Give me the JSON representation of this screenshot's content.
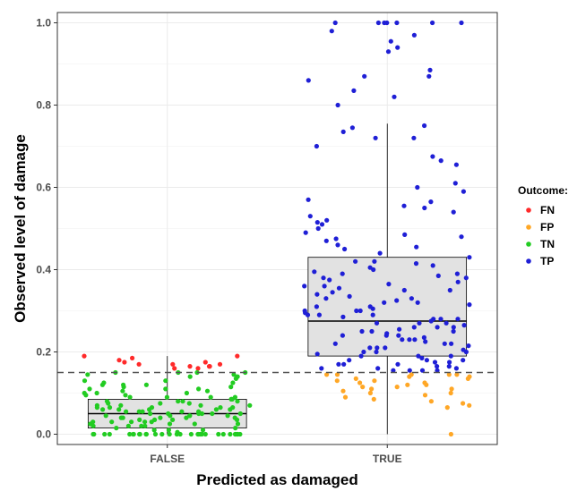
{
  "chart_data": {
    "type": "scatter",
    "subtype": "boxplot-with-jitter",
    "title": "",
    "xlabel": "Predicted as damaged",
    "ylabel": "Observed level of damage",
    "categories": [
      "FALSE",
      "TRUE"
    ],
    "ylim": [
      -0.025,
      1.025
    ],
    "yticks": [
      "0.0",
      "0.2",
      "0.4",
      "0.6",
      "0.8",
      "1.0"
    ],
    "ytick_values": [
      0,
      0.2,
      0.4,
      0.6,
      0.8,
      1.0
    ],
    "grid": true,
    "threshold": 0.15,
    "threshold_style": "dashed",
    "legend": {
      "title": "Outcome:",
      "placement": "right",
      "entries": [
        {
          "label": "FN",
          "color": "#ff2a2a"
        },
        {
          "label": "FP",
          "color": "#ffa726"
        },
        {
          "label": "TN",
          "color": "#22cc22"
        },
        {
          "label": "TP",
          "color": "#1f1fd6"
        }
      ]
    },
    "boxes": [
      {
        "category": "FALSE",
        "whisker_low": 0.0,
        "q1": 0.015,
        "median": 0.05,
        "q3": 0.085,
        "whisker_high": 0.19
      },
      {
        "category": "TRUE",
        "whisker_low": 0.0,
        "q1": 0.19,
        "median": 0.275,
        "q3": 0.43,
        "whisker_high": 0.755
      }
    ],
    "series": [
      {
        "name": "FN",
        "category": "FALSE",
        "values": [
          0.19,
          0.19,
          0.185,
          0.18,
          0.175,
          0.17,
          0.17,
          0.165,
          0.165,
          0.16,
          0.16,
          0.165,
          0.17,
          0.175
        ]
      },
      {
        "name": "TN",
        "category": "FALSE",
        "values": [
          0.0,
          0.0,
          0.0,
          0.0,
          0.0,
          0.0,
          0.0,
          0.0,
          0.0,
          0.0,
          0.0,
          0.0,
          0.0,
          0.0,
          0.0,
          0.0,
          0.0,
          0.0,
          0.0,
          0.0,
          0.0,
          0.0,
          0.0,
          0.0,
          0.0,
          0.0,
          0.0,
          0.0,
          0.0,
          0.0,
          0.005,
          0.01,
          0.01,
          0.015,
          0.015,
          0.02,
          0.02,
          0.02,
          0.025,
          0.025,
          0.025,
          0.03,
          0.03,
          0.03,
          0.03,
          0.035,
          0.035,
          0.035,
          0.04,
          0.04,
          0.04,
          0.04,
          0.045,
          0.045,
          0.045,
          0.045,
          0.05,
          0.05,
          0.05,
          0.05,
          0.05,
          0.055,
          0.055,
          0.055,
          0.055,
          0.06,
          0.06,
          0.06,
          0.06,
          0.065,
          0.065,
          0.065,
          0.065,
          0.07,
          0.07,
          0.07,
          0.075,
          0.075,
          0.075,
          0.08,
          0.08,
          0.08,
          0.085,
          0.085,
          0.085,
          0.09,
          0.09,
          0.09,
          0.095,
          0.095,
          0.1,
          0.1,
          0.1,
          0.105,
          0.105,
          0.11,
          0.11,
          0.115,
          0.115,
          0.12,
          0.12,
          0.125,
          0.125,
          0.13,
          0.13,
          0.135,
          0.14,
          0.14,
          0.145,
          0.145,
          0.15,
          0.15,
          0.15,
          0.15,
          0.02,
          0.04,
          0.06,
          0.08,
          0.03,
          0.05,
          0.07,
          0.01,
          0.09,
          0.11,
          0.12,
          0.035,
          0.045,
          0.055,
          0.065,
          0.025
        ]
      },
      {
        "name": "FP",
        "category": "TRUE",
        "values": [
          0.0,
          0.065,
          0.07,
          0.075,
          0.08,
          0.085,
          0.09,
          0.095,
          0.1,
          0.1,
          0.105,
          0.11,
          0.11,
          0.115,
          0.115,
          0.12,
          0.12,
          0.125,
          0.125,
          0.13,
          0.13,
          0.135,
          0.135,
          0.14,
          0.14,
          0.145,
          0.145,
          0.145,
          0.145,
          0.145
        ]
      },
      {
        "name": "TP",
        "category": "TRUE",
        "values": [
          1.0,
          1.0,
          1.0,
          1.0,
          1.0,
          1.0,
          1.0,
          0.98,
          0.97,
          0.955,
          0.94,
          0.93,
          0.885,
          0.87,
          0.87,
          0.86,
          0.835,
          0.82,
          0.8,
          0.75,
          0.745,
          0.735,
          0.72,
          0.72,
          0.7,
          0.675,
          0.665,
          0.655,
          0.61,
          0.6,
          0.59,
          0.57,
          0.565,
          0.555,
          0.55,
          0.54,
          0.53,
          0.52,
          0.515,
          0.51,
          0.5,
          0.49,
          0.485,
          0.48,
          0.475,
          0.47,
          0.46,
          0.455,
          0.45,
          0.44,
          0.43,
          0.42,
          0.415,
          0.41,
          0.405,
          0.4,
          0.395,
          0.39,
          0.385,
          0.38,
          0.375,
          0.37,
          0.365,
          0.36,
          0.355,
          0.35,
          0.345,
          0.34,
          0.335,
          0.33,
          0.325,
          0.32,
          0.315,
          0.31,
          0.305,
          0.3,
          0.3,
          0.295,
          0.29,
          0.29,
          0.285,
          0.28,
          0.28,
          0.275,
          0.27,
          0.27,
          0.265,
          0.26,
          0.26,
          0.255,
          0.25,
          0.25,
          0.245,
          0.24,
          0.24,
          0.235,
          0.23,
          0.23,
          0.225,
          0.22,
          0.22,
          0.215,
          0.21,
          0.21,
          0.205,
          0.2,
          0.2,
          0.195,
          0.19,
          0.19,
          0.185,
          0.18,
          0.18,
          0.175,
          0.17,
          0.17,
          0.165,
          0.16,
          0.16,
          0.155,
          0.155,
          0.155,
          0.155,
          0.16,
          0.165,
          0.17,
          0.175,
          0.18,
          0.19,
          0.2,
          0.21,
          0.22,
          0.23,
          0.24,
          0.26,
          0.28,
          0.3,
          0.32,
          0.35,
          0.38,
          0.42,
          0.39,
          0.36,
          0.33,
          0.31,
          0.29,
          0.27,
          0.25
        ]
      }
    ]
  }
}
